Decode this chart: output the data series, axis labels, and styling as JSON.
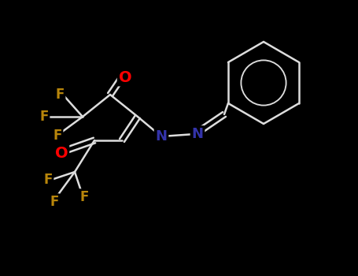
{
  "background_color": "#000000",
  "bond_color": "#111111",
  "bond_width": 1.8,
  "figsize": [
    4.55,
    3.5
  ],
  "dpi": 100,
  "atom_colors": {
    "O": "#ff0000",
    "F": "#b8860b",
    "N": "#3333aa",
    "C": "#111111"
  }
}
